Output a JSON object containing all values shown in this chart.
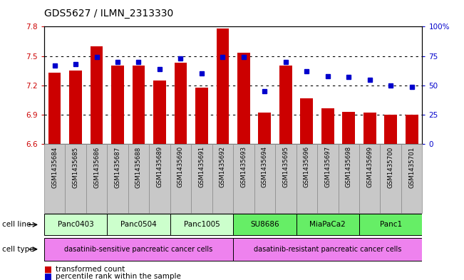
{
  "title": "GDS5627 / ILMN_2313330",
  "samples": [
    "GSM1435684",
    "GSM1435685",
    "GSM1435686",
    "GSM1435687",
    "GSM1435688",
    "GSM1435689",
    "GSM1435690",
    "GSM1435691",
    "GSM1435692",
    "GSM1435693",
    "GSM1435694",
    "GSM1435695",
    "GSM1435696",
    "GSM1435697",
    "GSM1435698",
    "GSM1435699",
    "GSM1435700",
    "GSM1435701"
  ],
  "bar_values": [
    7.33,
    7.35,
    7.6,
    7.4,
    7.4,
    7.25,
    7.43,
    7.18,
    7.78,
    7.53,
    6.92,
    7.4,
    7.07,
    6.97,
    6.93,
    6.92,
    6.9,
    6.9
  ],
  "percentile_values": [
    67,
    68,
    74,
    70,
    70,
    64,
    73,
    60,
    74,
    74,
    45,
    70,
    62,
    58,
    57,
    55,
    50,
    49
  ],
  "ylim_left": [
    6.6,
    7.8
  ],
  "ylim_right": [
    0,
    100
  ],
  "yticks_left": [
    6.6,
    6.9,
    7.2,
    7.5,
    7.8
  ],
  "yticks_right": [
    0,
    25,
    50,
    75,
    100
  ],
  "ytick_labels_left": [
    "6.6",
    "6.9",
    "7.2",
    "7.5",
    "7.8"
  ],
  "ytick_labels_right": [
    "0",
    "25",
    "50",
    "75",
    "100%"
  ],
  "bar_color": "#cc0000",
  "percentile_color": "#0000cc",
  "cell_lines": [
    {
      "label": "Panc0403",
      "start": 0,
      "end": 3,
      "color": "#ccffcc"
    },
    {
      "label": "Panc0504",
      "start": 3,
      "end": 6,
      "color": "#ccffcc"
    },
    {
      "label": "Panc1005",
      "start": 6,
      "end": 9,
      "color": "#ccffcc"
    },
    {
      "label": "SU8686",
      "start": 9,
      "end": 12,
      "color": "#66ee66"
    },
    {
      "label": "MiaPaCa2",
      "start": 12,
      "end": 15,
      "color": "#66ee66"
    },
    {
      "label": "Panc1",
      "start": 15,
      "end": 18,
      "color": "#66ee66"
    }
  ],
  "cell_types": [
    {
      "label": "dasatinib-sensitive pancreatic cancer cells",
      "start": 0,
      "end": 9,
      "color": "#ee82ee"
    },
    {
      "label": "dasatinib-resistant pancreatic cancer cells",
      "start": 9,
      "end": 18,
      "color": "#ee82ee"
    }
  ],
  "legend_bar_label": "transformed count",
  "legend_pct_label": "percentile rank within the sample",
  "cell_line_label": "cell line",
  "cell_type_label": "cell type",
  "bar_width": 0.6,
  "sample_bg_color": "#c8c8c8",
  "sample_border_color": "#888888"
}
